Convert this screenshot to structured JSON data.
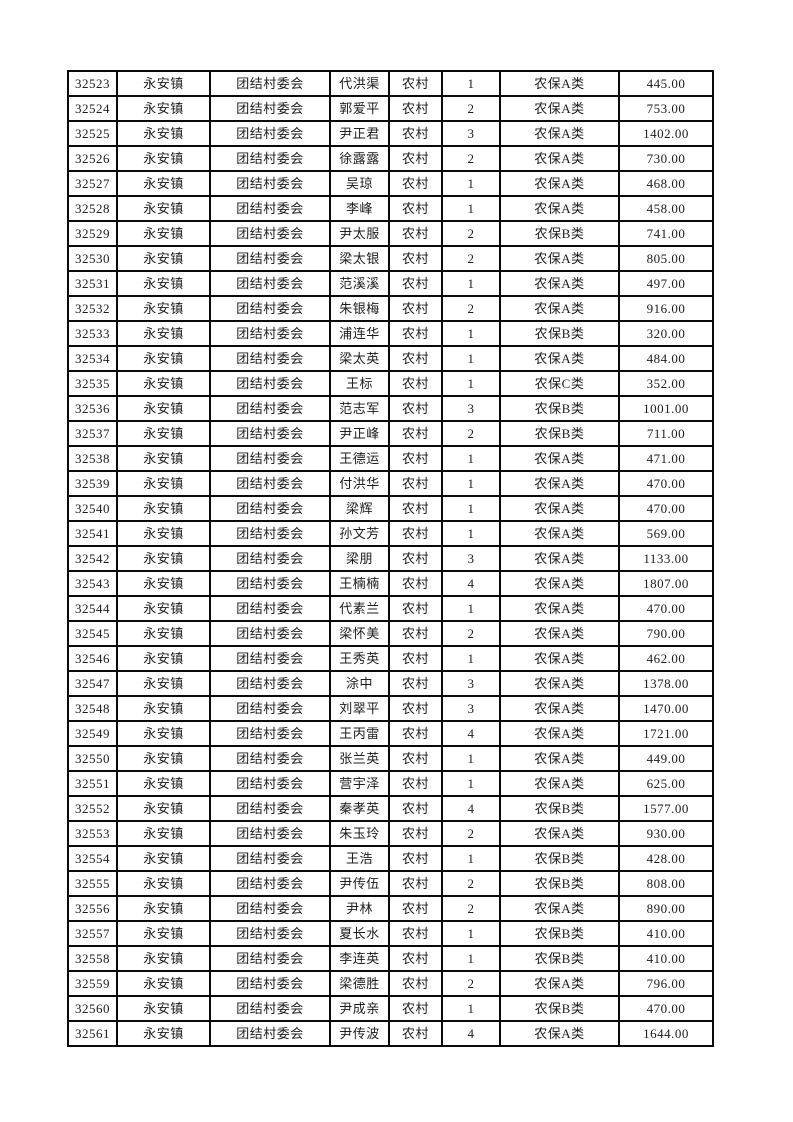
{
  "document": {
    "background_color": "#ffffff",
    "text_color": "#1c1c1c",
    "border_color": "#0a0a0a"
  },
  "table": {
    "column_keys": [
      "id",
      "town",
      "village",
      "name",
      "residence",
      "count",
      "category",
      "amount"
    ],
    "rows": [
      [
        "32523",
        "永安镇",
        "团结村委会",
        "代洪渠",
        "农村",
        "1",
        "农保A类",
        "445.00"
      ],
      [
        "32524",
        "永安镇",
        "团结村委会",
        "郭爱平",
        "农村",
        "2",
        "农保A类",
        "753.00"
      ],
      [
        "32525",
        "永安镇",
        "团结村委会",
        "尹正君",
        "农村",
        "3",
        "农保A类",
        "1402.00"
      ],
      [
        "32526",
        "永安镇",
        "团结村委会",
        "徐露露",
        "农村",
        "2",
        "农保A类",
        "730.00"
      ],
      [
        "32527",
        "永安镇",
        "团结村委会",
        "吴琼",
        "农村",
        "1",
        "农保A类",
        "468.00"
      ],
      [
        "32528",
        "永安镇",
        "团结村委会",
        "李峰",
        "农村",
        "1",
        "农保A类",
        "458.00"
      ],
      [
        "32529",
        "永安镇",
        "团结村委会",
        "尹太服",
        "农村",
        "2",
        "农保B类",
        "741.00"
      ],
      [
        "32530",
        "永安镇",
        "团结村委会",
        "梁太银",
        "农村",
        "2",
        "农保A类",
        "805.00"
      ],
      [
        "32531",
        "永安镇",
        "团结村委会",
        "范溪溪",
        "农村",
        "1",
        "农保A类",
        "497.00"
      ],
      [
        "32532",
        "永安镇",
        "团结村委会",
        "朱银梅",
        "农村",
        "2",
        "农保A类",
        "916.00"
      ],
      [
        "32533",
        "永安镇",
        "团结村委会",
        "浦连华",
        "农村",
        "1",
        "农保B类",
        "320.00"
      ],
      [
        "32534",
        "永安镇",
        "团结村委会",
        "梁太英",
        "农村",
        "1",
        "农保A类",
        "484.00"
      ],
      [
        "32535",
        "永安镇",
        "团结村委会",
        "王标",
        "农村",
        "1",
        "农保C类",
        "352.00"
      ],
      [
        "32536",
        "永安镇",
        "团结村委会",
        "范志军",
        "农村",
        "3",
        "农保B类",
        "1001.00"
      ],
      [
        "32537",
        "永安镇",
        "团结村委会",
        "尹正峰",
        "农村",
        "2",
        "农保B类",
        "711.00"
      ],
      [
        "32538",
        "永安镇",
        "团结村委会",
        "王德运",
        "农村",
        "1",
        "农保A类",
        "471.00"
      ],
      [
        "32539",
        "永安镇",
        "团结村委会",
        "付洪华",
        "农村",
        "1",
        "农保A类",
        "470.00"
      ],
      [
        "32540",
        "永安镇",
        "团结村委会",
        "梁辉",
        "农村",
        "1",
        "农保A类",
        "470.00"
      ],
      [
        "32541",
        "永安镇",
        "团结村委会",
        "孙文芳",
        "农村",
        "1",
        "农保A类",
        "569.00"
      ],
      [
        "32542",
        "永安镇",
        "团结村委会",
        "梁朋",
        "农村",
        "3",
        "农保A类",
        "1133.00"
      ],
      [
        "32543",
        "永安镇",
        "团结村委会",
        "王楠楠",
        "农村",
        "4",
        "农保A类",
        "1807.00"
      ],
      [
        "32544",
        "永安镇",
        "团结村委会",
        "代素兰",
        "农村",
        "1",
        "农保A类",
        "470.00"
      ],
      [
        "32545",
        "永安镇",
        "团结村委会",
        "梁怀美",
        "农村",
        "2",
        "农保A类",
        "790.00"
      ],
      [
        "32546",
        "永安镇",
        "团结村委会",
        "王秀英",
        "农村",
        "1",
        "农保A类",
        "462.00"
      ],
      [
        "32547",
        "永安镇",
        "团结村委会",
        "涂中",
        "农村",
        "3",
        "农保A类",
        "1378.00"
      ],
      [
        "32548",
        "永安镇",
        "团结村委会",
        "刘翠平",
        "农村",
        "3",
        "农保A类",
        "1470.00"
      ],
      [
        "32549",
        "永安镇",
        "团结村委会",
        "王丙雷",
        "农村",
        "4",
        "农保A类",
        "1721.00"
      ],
      [
        "32550",
        "永安镇",
        "团结村委会",
        "张兰英",
        "农村",
        "1",
        "农保A类",
        "449.00"
      ],
      [
        "32551",
        "永安镇",
        "团结村委会",
        "营宇泽",
        "农村",
        "1",
        "农保A类",
        "625.00"
      ],
      [
        "32552",
        "永安镇",
        "团结村委会",
        "秦孝英",
        "农村",
        "4",
        "农保B类",
        "1577.00"
      ],
      [
        "32553",
        "永安镇",
        "团结村委会",
        "朱玉玲",
        "农村",
        "2",
        "农保A类",
        "930.00"
      ],
      [
        "32554",
        "永安镇",
        "团结村委会",
        "王浩",
        "农村",
        "1",
        "农保B类",
        "428.00"
      ],
      [
        "32555",
        "永安镇",
        "团结村委会",
        "尹传伍",
        "农村",
        "2",
        "农保B类",
        "808.00"
      ],
      [
        "32556",
        "永安镇",
        "团结村委会",
        "尹林",
        "农村",
        "2",
        "农保A类",
        "890.00"
      ],
      [
        "32557",
        "永安镇",
        "团结村委会",
        "夏长水",
        "农村",
        "1",
        "农保B类",
        "410.00"
      ],
      [
        "32558",
        "永安镇",
        "团结村委会",
        "李连英",
        "农村",
        "1",
        "农保B类",
        "410.00"
      ],
      [
        "32559",
        "永安镇",
        "团结村委会",
        "梁德胜",
        "农村",
        "2",
        "农保A类",
        "796.00"
      ],
      [
        "32560",
        "永安镇",
        "团结村委会",
        "尹成亲",
        "农村",
        "1",
        "农保B类",
        "470.00"
      ],
      [
        "32561",
        "永安镇",
        "团结村委会",
        "尹传波",
        "农村",
        "4",
        "农保A类",
        "1644.00"
      ]
    ]
  }
}
